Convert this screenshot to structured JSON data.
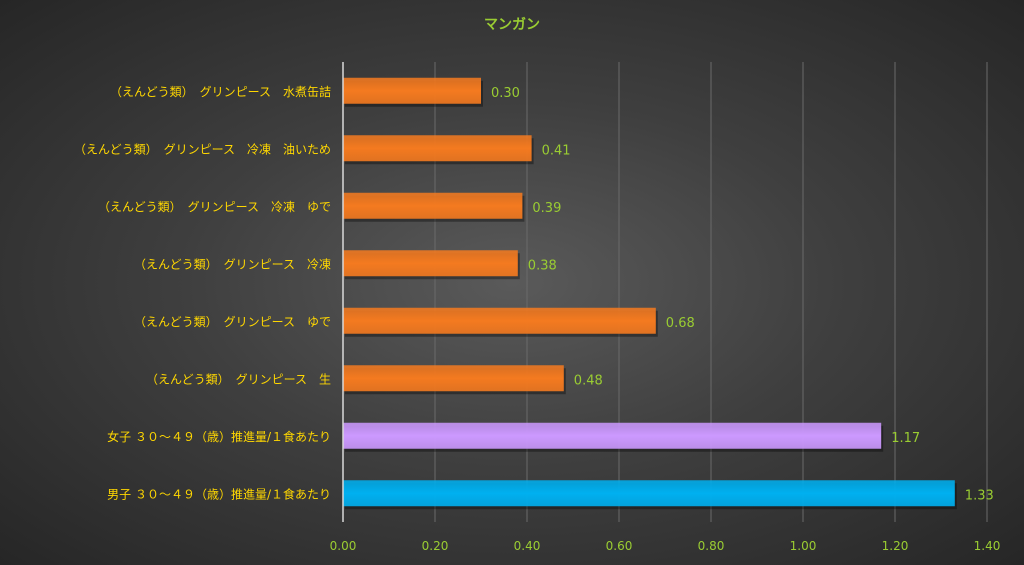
{
  "chart_data": {
    "type": "bar",
    "orientation": "horizontal",
    "title": "マンガン",
    "xlabel": "",
    "ylabel": "",
    "xlim": [
      0,
      1.4
    ],
    "x_ticks": [
      "0.00",
      "0.20",
      "0.40",
      "0.60",
      "0.80",
      "1.00",
      "1.20",
      "1.40"
    ],
    "x_tick_values": [
      0,
      0.2,
      0.4,
      0.6,
      0.8,
      1.0,
      1.2,
      1.4
    ],
    "grid": "vertical",
    "legend": "none",
    "categories": [
      "（えんどう類）　グリンピース　水煮缶詰",
      "（えんどう類）　グリンピース　冷凍　油いため",
      "（えんどう類）　グリンピース　冷凍　ゆで",
      "（えんどう類）　グリンピース　冷凍",
      "（えんどう類）　グリンピース　ゆで",
      "（えんどう類）　グリンピース　生",
      "女子 ３０～４９（歳）推進量/１食あたり",
      "男子 ３０～４９（歳）推進量/１食あたり"
    ],
    "values": [
      0.3,
      0.41,
      0.39,
      0.38,
      0.68,
      0.48,
      1.17,
      1.33
    ],
    "value_labels": [
      "0.30",
      "0.41",
      "0.39",
      "0.38",
      "0.68",
      "0.48",
      "1.17",
      "1.33"
    ],
    "bar_colors": [
      "#f47a20",
      "#f47a20",
      "#f47a20",
      "#f47a20",
      "#f47a20",
      "#f47a20",
      "#cc99ff",
      "#00b0f0"
    ]
  },
  "colors": {
    "title": "#9acd32",
    "category_label": "#ffd700",
    "tick_label": "#9acd32",
    "value_label": "#9acd32",
    "grid": "#6a6a6a",
    "axis": "#d9d9d9"
  }
}
